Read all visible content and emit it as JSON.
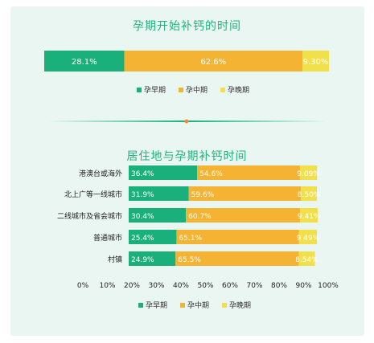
{
  "colors": {
    "early": "#1ab07b",
    "mid": "#f5b333",
    "late": "#f1e04a",
    "title": "#1fb37d",
    "bg": "#eaf6f1"
  },
  "chart_data": [
    {
      "type": "bar",
      "orientation": "horizontal",
      "stacked": true,
      "title": "孕期开始补钙的时间",
      "series": [
        {
          "name": "孕早期",
          "values": [
            28.1
          ],
          "labels": [
            "28.1%"
          ]
        },
        {
          "name": "孕中期",
          "values": [
            62.6
          ],
          "labels": [
            "62.6%"
          ]
        },
        {
          "name": "孕晚期",
          "values": [
            9.3
          ],
          "labels": [
            "9.30%"
          ]
        }
      ],
      "legend": [
        "孕早期",
        "孕中期",
        "孕晚期"
      ],
      "legend_position": "bottom"
    },
    {
      "type": "bar",
      "orientation": "horizontal",
      "stacked": true,
      "title": "居住地与孕期补钙时间",
      "categories": [
        "港澳台或海外",
        "北上广等一线城市",
        "二线城市及省会城市",
        "普通城市",
        "村镇"
      ],
      "series": [
        {
          "name": "孕早期",
          "values": [
            36.4,
            31.9,
            30.4,
            25.4,
            24.9
          ],
          "labels": [
            "36.4%",
            "31.9%",
            "30.4%",
            "25.4%",
            "24.9%"
          ]
        },
        {
          "name": "孕中期",
          "values": [
            54.6,
            59.6,
            60.7,
            65.1,
            65.5
          ],
          "labels": [
            "54.6%",
            "59.6%",
            "60.7%",
            "65.1%",
            "65.5%"
          ]
        },
        {
          "name": "孕晚期",
          "values": [
            9.09,
            8.5,
            9.41,
            9.49,
            8.54
          ],
          "labels": [
            "9.09%",
            "8.50%",
            "9.41%",
            "9.49%",
            "8.54%"
          ]
        }
      ],
      "xlim": [
        0,
        100
      ],
      "xticks": [
        "0%",
        "10%",
        "20%",
        "30%",
        "40%",
        "50%",
        "60%",
        "70%",
        "80%",
        "90%",
        "100%"
      ],
      "legend": [
        "孕早期",
        "孕中期",
        "孕晚期"
      ],
      "legend_position": "bottom",
      "grid": false
    }
  ]
}
